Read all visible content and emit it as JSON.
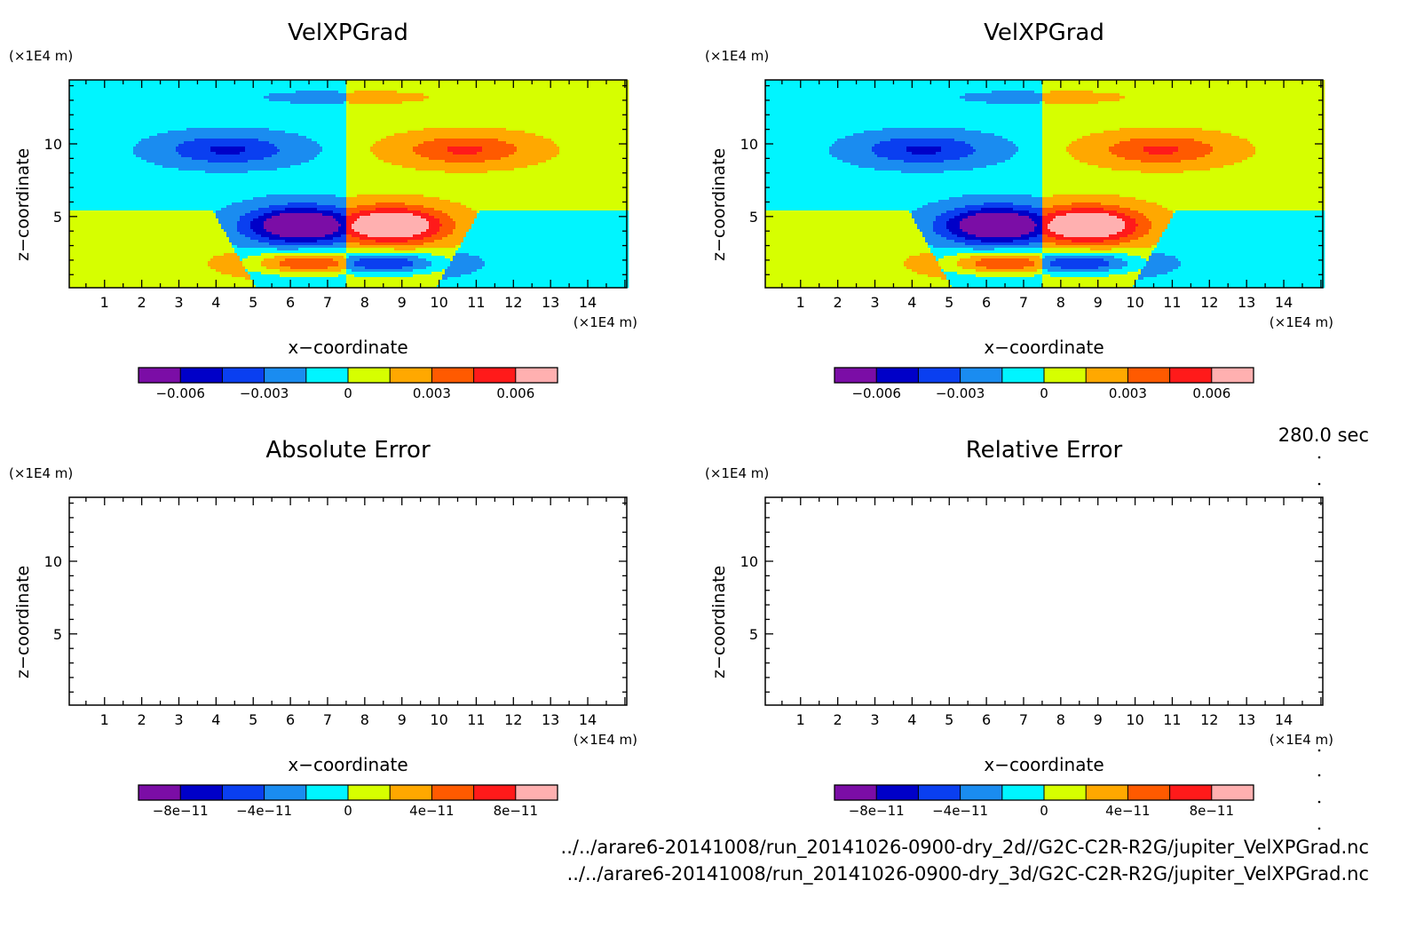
{
  "time_label": "280.0 sec",
  "footer": {
    "file1": "../../arare6-20141008/run_20141026-0900-dry_2d//G2C-C2R-R2G/jupiter_VelXPGrad.nc",
    "file2": "../../arare6-20141008/run_20141026-0900-dry_3d/G2C-C2R-R2G/jupiter_VelXPGrad.nc"
  },
  "colors": {
    "levels": [
      "#7b0da6",
      "#0000c8",
      "#0a3ff0",
      "#1a8cf0",
      "#00f5ff",
      "#d6ff00",
      "#ffa800",
      "#ff5a00",
      "#ff1a1a",
      "#ffb0b0"
    ]
  },
  "chart_data": [
    {
      "type": "heatmap",
      "title": "VelXPGrad",
      "xlabel": "x−coordinate",
      "ylabel": "z−coordinate",
      "x_unit": "(×1E4 m)",
      "y_unit": "(×1E4 m)",
      "xlim": [
        0,
        15
      ],
      "ylim": [
        0,
        15
      ],
      "xticks": [
        1,
        2,
        3,
        4,
        5,
        6,
        7,
        8,
        9,
        10,
        11,
        12,
        13,
        14
      ],
      "yticks": [
        5,
        10
      ],
      "colorbar": {
        "levels": [
          -0.008,
          -0.006,
          -0.0045,
          -0.003,
          -0.0015,
          0,
          0.0015,
          0.003,
          0.0045,
          0.006,
          0.0075
        ],
        "tick_values": [
          -0.006,
          -0.003,
          0,
          0.003,
          0.006
        ],
        "tick_labels": [
          "−0.006",
          "−0.003",
          "0",
          "0.003",
          "0.006"
        ]
      },
      "empty": false
    },
    {
      "type": "heatmap",
      "title": "VelXPGrad",
      "xlabel": "x−coordinate",
      "ylabel": "z−coordinate",
      "x_unit": "(×1E4 m)",
      "y_unit": "(×1E4 m)",
      "xlim": [
        0,
        15
      ],
      "ylim": [
        0,
        15
      ],
      "xticks": [
        1,
        2,
        3,
        4,
        5,
        6,
        7,
        8,
        9,
        10,
        11,
        12,
        13,
        14
      ],
      "yticks": [
        5,
        10
      ],
      "colorbar": {
        "levels": [
          -0.008,
          -0.006,
          -0.0045,
          -0.003,
          -0.0015,
          0,
          0.0015,
          0.003,
          0.0045,
          0.006,
          0.0075
        ],
        "tick_values": [
          -0.006,
          -0.003,
          0,
          0.003,
          0.006
        ],
        "tick_labels": [
          "−0.006",
          "−0.003",
          "0",
          "0.003",
          "0.006"
        ]
      },
      "empty": false
    },
    {
      "type": "heatmap",
      "title": "Absolute Error",
      "xlabel": "x−coordinate",
      "ylabel": "z−coordinate",
      "x_unit": "(×1E4 m)",
      "y_unit": "(×1E4 m)",
      "xlim": [
        0,
        15
      ],
      "ylim": [
        0,
        15
      ],
      "xticks": [
        1,
        2,
        3,
        4,
        5,
        6,
        7,
        8,
        9,
        10,
        11,
        12,
        13,
        14
      ],
      "yticks": [
        5,
        10
      ],
      "colorbar": {
        "levels": [
          -1e-10,
          -8e-11,
          -6e-11,
          -4e-11,
          -2e-11,
          0,
          2e-11,
          4e-11,
          6e-11,
          8e-11,
          1e-10
        ],
        "tick_values": [
          -8e-11,
          -4e-11,
          0,
          4e-11,
          8e-11
        ],
        "tick_labels": [
          "−8e−11",
          "−4e−11",
          "0",
          "4e−11",
          "8e−11"
        ]
      },
      "empty": true
    },
    {
      "type": "heatmap",
      "title": "Relative Error",
      "xlabel": "x−coordinate",
      "ylabel": "z−coordinate",
      "x_unit": "(×1E4 m)",
      "y_unit": "(×1E4 m)",
      "xlim": [
        0,
        15
      ],
      "ylim": [
        0,
        15
      ],
      "xticks": [
        1,
        2,
        3,
        4,
        5,
        6,
        7,
        8,
        9,
        10,
        11,
        12,
        13,
        14
      ],
      "yticks": [
        5,
        10
      ],
      "colorbar": {
        "levels": [
          -1e-10,
          -8e-11,
          -6e-11,
          -4e-11,
          -2e-11,
          0,
          2e-11,
          4e-11,
          6e-11,
          8e-11,
          1e-10
        ],
        "tick_values": [
          -8e-11,
          -4e-11,
          0,
          4e-11,
          8e-11
        ],
        "tick_labels": [
          "−8e−11",
          "−4e−11",
          "0",
          "4e−11",
          "8e−11"
        ]
      },
      "empty": true
    }
  ]
}
